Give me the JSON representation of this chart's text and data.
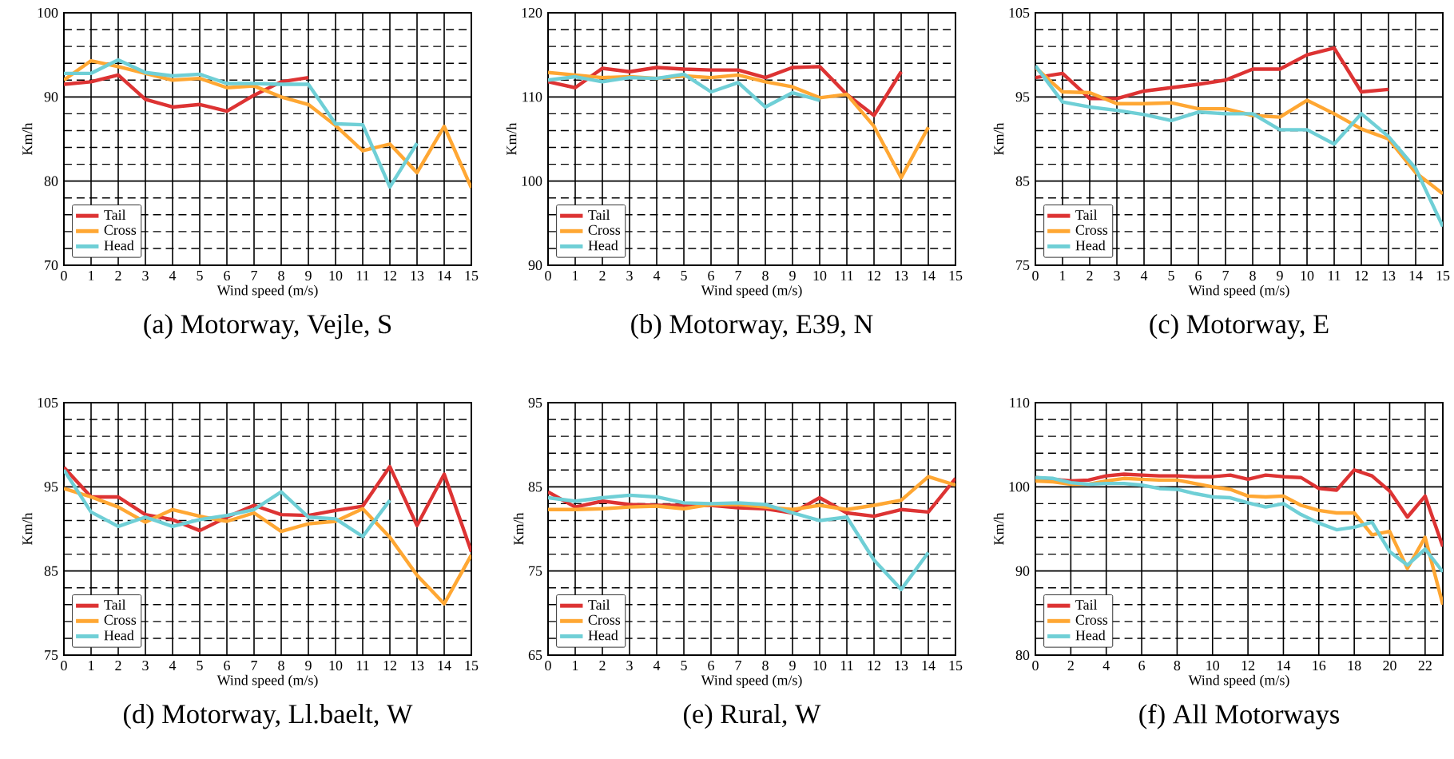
{
  "chart_data": [
    {
      "type": "line",
      "title": "(a) Motorway, Vejle, S",
      "xlabel": "Wind speed (m/s)",
      "ylabel": "Km/h",
      "x": [
        0,
        1,
        2,
        3,
        4,
        5,
        6,
        7,
        8,
        9,
        10,
        11,
        12,
        13,
        14,
        15
      ],
      "xlim": [
        0,
        15
      ],
      "xticks": [
        0,
        1,
        2,
        3,
        4,
        5,
        6,
        7,
        8,
        9,
        10,
        11,
        12,
        13,
        14,
        15
      ],
      "ylim": [
        70,
        100
      ],
      "yticks": [
        70,
        80,
        90,
        100
      ],
      "grid": true,
      "legend": "bottom left",
      "series": [
        {
          "name": "Tail",
          "color": "#dd3333",
          "values": [
            91.5,
            91.8,
            92.6,
            89.7,
            88.8,
            89.1,
            88.3,
            90.2,
            91.8,
            92.3,
            null,
            null,
            null,
            null,
            null,
            null
          ]
        },
        {
          "name": "Cross",
          "color": "#ffa733",
          "values": [
            92.0,
            94.3,
            93.6,
            92.8,
            92.0,
            92.2,
            91.1,
            91.3,
            90.0,
            89.1,
            86.6,
            83.6,
            84.4,
            81.0,
            86.5,
            79.2
          ]
        },
        {
          "name": "Head",
          "color": "#6fcfd6",
          "values": [
            92.8,
            92.8,
            94.4,
            92.9,
            92.5,
            92.7,
            91.6,
            91.6,
            91.5,
            91.5,
            86.8,
            86.7,
            79.3,
            84.5,
            null,
            null
          ]
        }
      ]
    },
    {
      "type": "line",
      "title": "(b) Motorway, E39, N",
      "xlabel": "Wind speed (m/s)",
      "ylabel": "Km/h",
      "x": [
        0,
        1,
        2,
        3,
        4,
        5,
        6,
        7,
        8,
        9,
        10,
        11,
        12,
        13,
        14
      ],
      "xlim": [
        0,
        15
      ],
      "xticks": [
        0,
        1,
        2,
        3,
        4,
        5,
        6,
        7,
        8,
        9,
        10,
        11,
        12,
        13,
        14,
        15
      ],
      "ylim": [
        90,
        120
      ],
      "yticks": [
        90,
        100,
        110,
        120
      ],
      "grid": true,
      "legend": "bottom left",
      "series": [
        {
          "name": "Tail",
          "color": "#dd3333",
          "values": [
            111.8,
            111.1,
            113.4,
            113.0,
            113.5,
            113.3,
            113.2,
            113.2,
            112.3,
            113.5,
            113.6,
            110.3,
            107.8,
            113.0,
            null
          ]
        },
        {
          "name": "Cross",
          "color": "#ffa733",
          "values": [
            112.9,
            112.6,
            112.3,
            112.4,
            112.2,
            112.5,
            112.3,
            112.6,
            111.8,
            111.2,
            109.9,
            110.3,
            106.5,
            100.4,
            106.4
          ]
        },
        {
          "name": "Head",
          "color": "#6fcfd6",
          "values": [
            112.0,
            112.4,
            111.8,
            112.3,
            112.2,
            112.7,
            110.6,
            111.7,
            108.8,
            110.5,
            109.6,
            null,
            null,
            null,
            null
          ]
        }
      ]
    },
    {
      "type": "line",
      "title": "(c) Motorway, E",
      "xlabel": "Wind speed (m/s)",
      "ylabel": "Km/h",
      "x": [
        0,
        1,
        2,
        3,
        4,
        5,
        6,
        7,
        8,
        9,
        10,
        11,
        12,
        13,
        14,
        15
      ],
      "xlim": [
        0,
        15
      ],
      "xticks": [
        0,
        1,
        2,
        3,
        4,
        5,
        6,
        7,
        8,
        9,
        10,
        11,
        12,
        13,
        14,
        15
      ],
      "ylim": [
        75,
        105
      ],
      "yticks": [
        75,
        85,
        95,
        105
      ],
      "grid": true,
      "legend": "bottom left",
      "series": [
        {
          "name": "Tail",
          "color": "#dd3333",
          "values": [
            97.3,
            97.8,
            94.8,
            94.8,
            95.7,
            96.1,
            96.5,
            97.0,
            98.3,
            98.3,
            100.0,
            100.8,
            95.6,
            95.9,
            null,
            null
          ]
        },
        {
          "name": "Cross",
          "color": "#ffa733",
          "values": [
            98.5,
            95.6,
            95.5,
            94.2,
            94.2,
            94.3,
            93.6,
            93.6,
            92.8,
            92.6,
            94.6,
            93.0,
            91.2,
            90.0,
            86.0,
            83.5
          ]
        },
        {
          "name": "Head",
          "color": "#6fcfd6",
          "values": [
            98.7,
            94.4,
            93.8,
            93.4,
            92.9,
            92.2,
            93.2,
            93.0,
            93.0,
            91.1,
            91.1,
            89.4,
            93.0,
            90.3,
            86.5,
            79.6
          ]
        }
      ]
    },
    {
      "type": "line",
      "title": "(d) Motorway, Ll.baelt, W",
      "xlabel": "Wind speed (m/s)",
      "ylabel": "Km/h",
      "x": [
        0,
        1,
        2,
        3,
        4,
        5,
        6,
        7,
        8,
        9,
        10,
        11,
        12,
        13,
        14,
        15
      ],
      "xlim": [
        0,
        15
      ],
      "xticks": [
        0,
        1,
        2,
        3,
        4,
        5,
        6,
        7,
        8,
        9,
        10,
        11,
        12,
        13,
        14,
        15
      ],
      "ylim": [
        75,
        105
      ],
      "yticks": [
        75,
        85,
        95,
        105
      ],
      "grid": true,
      "legend": "bottom left",
      "series": [
        {
          "name": "Tail",
          "color": "#dd3333",
          "values": [
            97.3,
            93.8,
            93.8,
            91.7,
            91.1,
            89.8,
            91.4,
            92.8,
            91.7,
            91.6,
            92.2,
            92.7,
            97.4,
            90.4,
            96.5,
            87.3
          ]
        },
        {
          "name": "Cross",
          "color": "#ffa733",
          "values": [
            94.8,
            93.8,
            92.6,
            90.8,
            92.3,
            91.5,
            90.9,
            91.9,
            89.7,
            90.6,
            90.9,
            92.4,
            89.0,
            84.5,
            81.1,
            86.9
          ]
        },
        {
          "name": "Head",
          "color": "#6fcfd6",
          "values": [
            97.0,
            92.0,
            90.3,
            91.4,
            90.3,
            91.1,
            91.6,
            92.3,
            94.4,
            91.4,
            91.2,
            89.1,
            93.4,
            null,
            null,
            null
          ]
        }
      ]
    },
    {
      "type": "line",
      "title": "(e) Rural, W",
      "xlabel": "Wind speed (m/s)",
      "ylabel": "Km/h",
      "x": [
        0,
        1,
        2,
        3,
        4,
        5,
        6,
        7,
        8,
        9,
        10,
        11,
        12,
        13,
        14,
        15
      ],
      "xlim": [
        0,
        15
      ],
      "xticks": [
        0,
        1,
        2,
        3,
        4,
        5,
        6,
        7,
        8,
        9,
        10,
        11,
        12,
        13,
        14,
        15
      ],
      "ylim": [
        65,
        95
      ],
      "yticks": [
        65,
        75,
        85,
        95
      ],
      "grid": true,
      "legend": "bottom left",
      "series": [
        {
          "name": "Tail",
          "color": "#dd3333",
          "values": [
            84.4,
            82.6,
            83.3,
            82.9,
            82.8,
            82.8,
            82.8,
            82.5,
            82.4,
            81.9,
            83.7,
            81.9,
            81.5,
            82.3,
            82.0,
            86.0
          ]
        },
        {
          "name": "Cross",
          "color": "#ffa733",
          "values": [
            82.3,
            82.3,
            82.4,
            82.6,
            82.7,
            82.4,
            82.9,
            82.9,
            82.6,
            82.3,
            82.8,
            82.3,
            82.8,
            83.4,
            86.2,
            85.2
          ]
        },
        {
          "name": "Head",
          "color": "#6fcfd6",
          "values": [
            83.7,
            83.3,
            83.7,
            84.0,
            83.8,
            83.1,
            83.0,
            83.1,
            82.9,
            81.9,
            81.0,
            81.4,
            76.3,
            72.8,
            77.2,
            null
          ]
        }
      ]
    },
    {
      "type": "line",
      "title": "(f) All Motorways",
      "xlabel": "Wind speed (m/s)",
      "ylabel": "Km/h",
      "x": [
        0,
        1,
        2,
        3,
        4,
        5,
        6,
        7,
        8,
        9,
        10,
        11,
        12,
        13,
        14,
        15,
        16,
        17,
        18,
        19,
        20,
        21,
        22,
        23
      ],
      "xlim": [
        0,
        23
      ],
      "xticks": [
        0,
        2,
        4,
        6,
        8,
        10,
        12,
        14,
        16,
        18,
        20,
        22
      ],
      "ylim": [
        80,
        110
      ],
      "yticks": [
        80,
        90,
        100,
        110
      ],
      "grid": true,
      "legend": "bottom left",
      "series": [
        {
          "name": "Tail",
          "color": "#dd3333",
          "values": [
            101.1,
            100.9,
            100.7,
            100.8,
            101.3,
            101.5,
            101.4,
            101.3,
            101.3,
            101.2,
            101.2,
            101.4,
            100.9,
            101.4,
            101.2,
            101.1,
            99.8,
            99.6,
            102.0,
            101.3,
            99.5,
            96.4,
            98.9,
            92.9
          ]
        },
        {
          "name": "Cross",
          "color": "#ffa733",
          "values": [
            100.7,
            100.6,
            100.3,
            100.3,
            100.7,
            101.0,
            100.9,
            100.8,
            100.8,
            100.4,
            100.0,
            99.7,
            98.9,
            98.8,
            98.9,
            97.8,
            97.2,
            96.9,
            96.9,
            94.3,
            94.7,
            90.3,
            94.0,
            86.0
          ]
        },
        {
          "name": "Head",
          "color": "#6fcfd6",
          "values": [
            101.1,
            101.0,
            100.5,
            100.3,
            100.4,
            100.4,
            100.2,
            99.8,
            99.7,
            99.2,
            98.8,
            98.7,
            98.1,
            97.6,
            98.0,
            96.7,
            95.7,
            94.9,
            95.2,
            95.8,
            92.3,
            90.7,
            92.6,
            89.9
          ]
        }
      ]
    }
  ]
}
